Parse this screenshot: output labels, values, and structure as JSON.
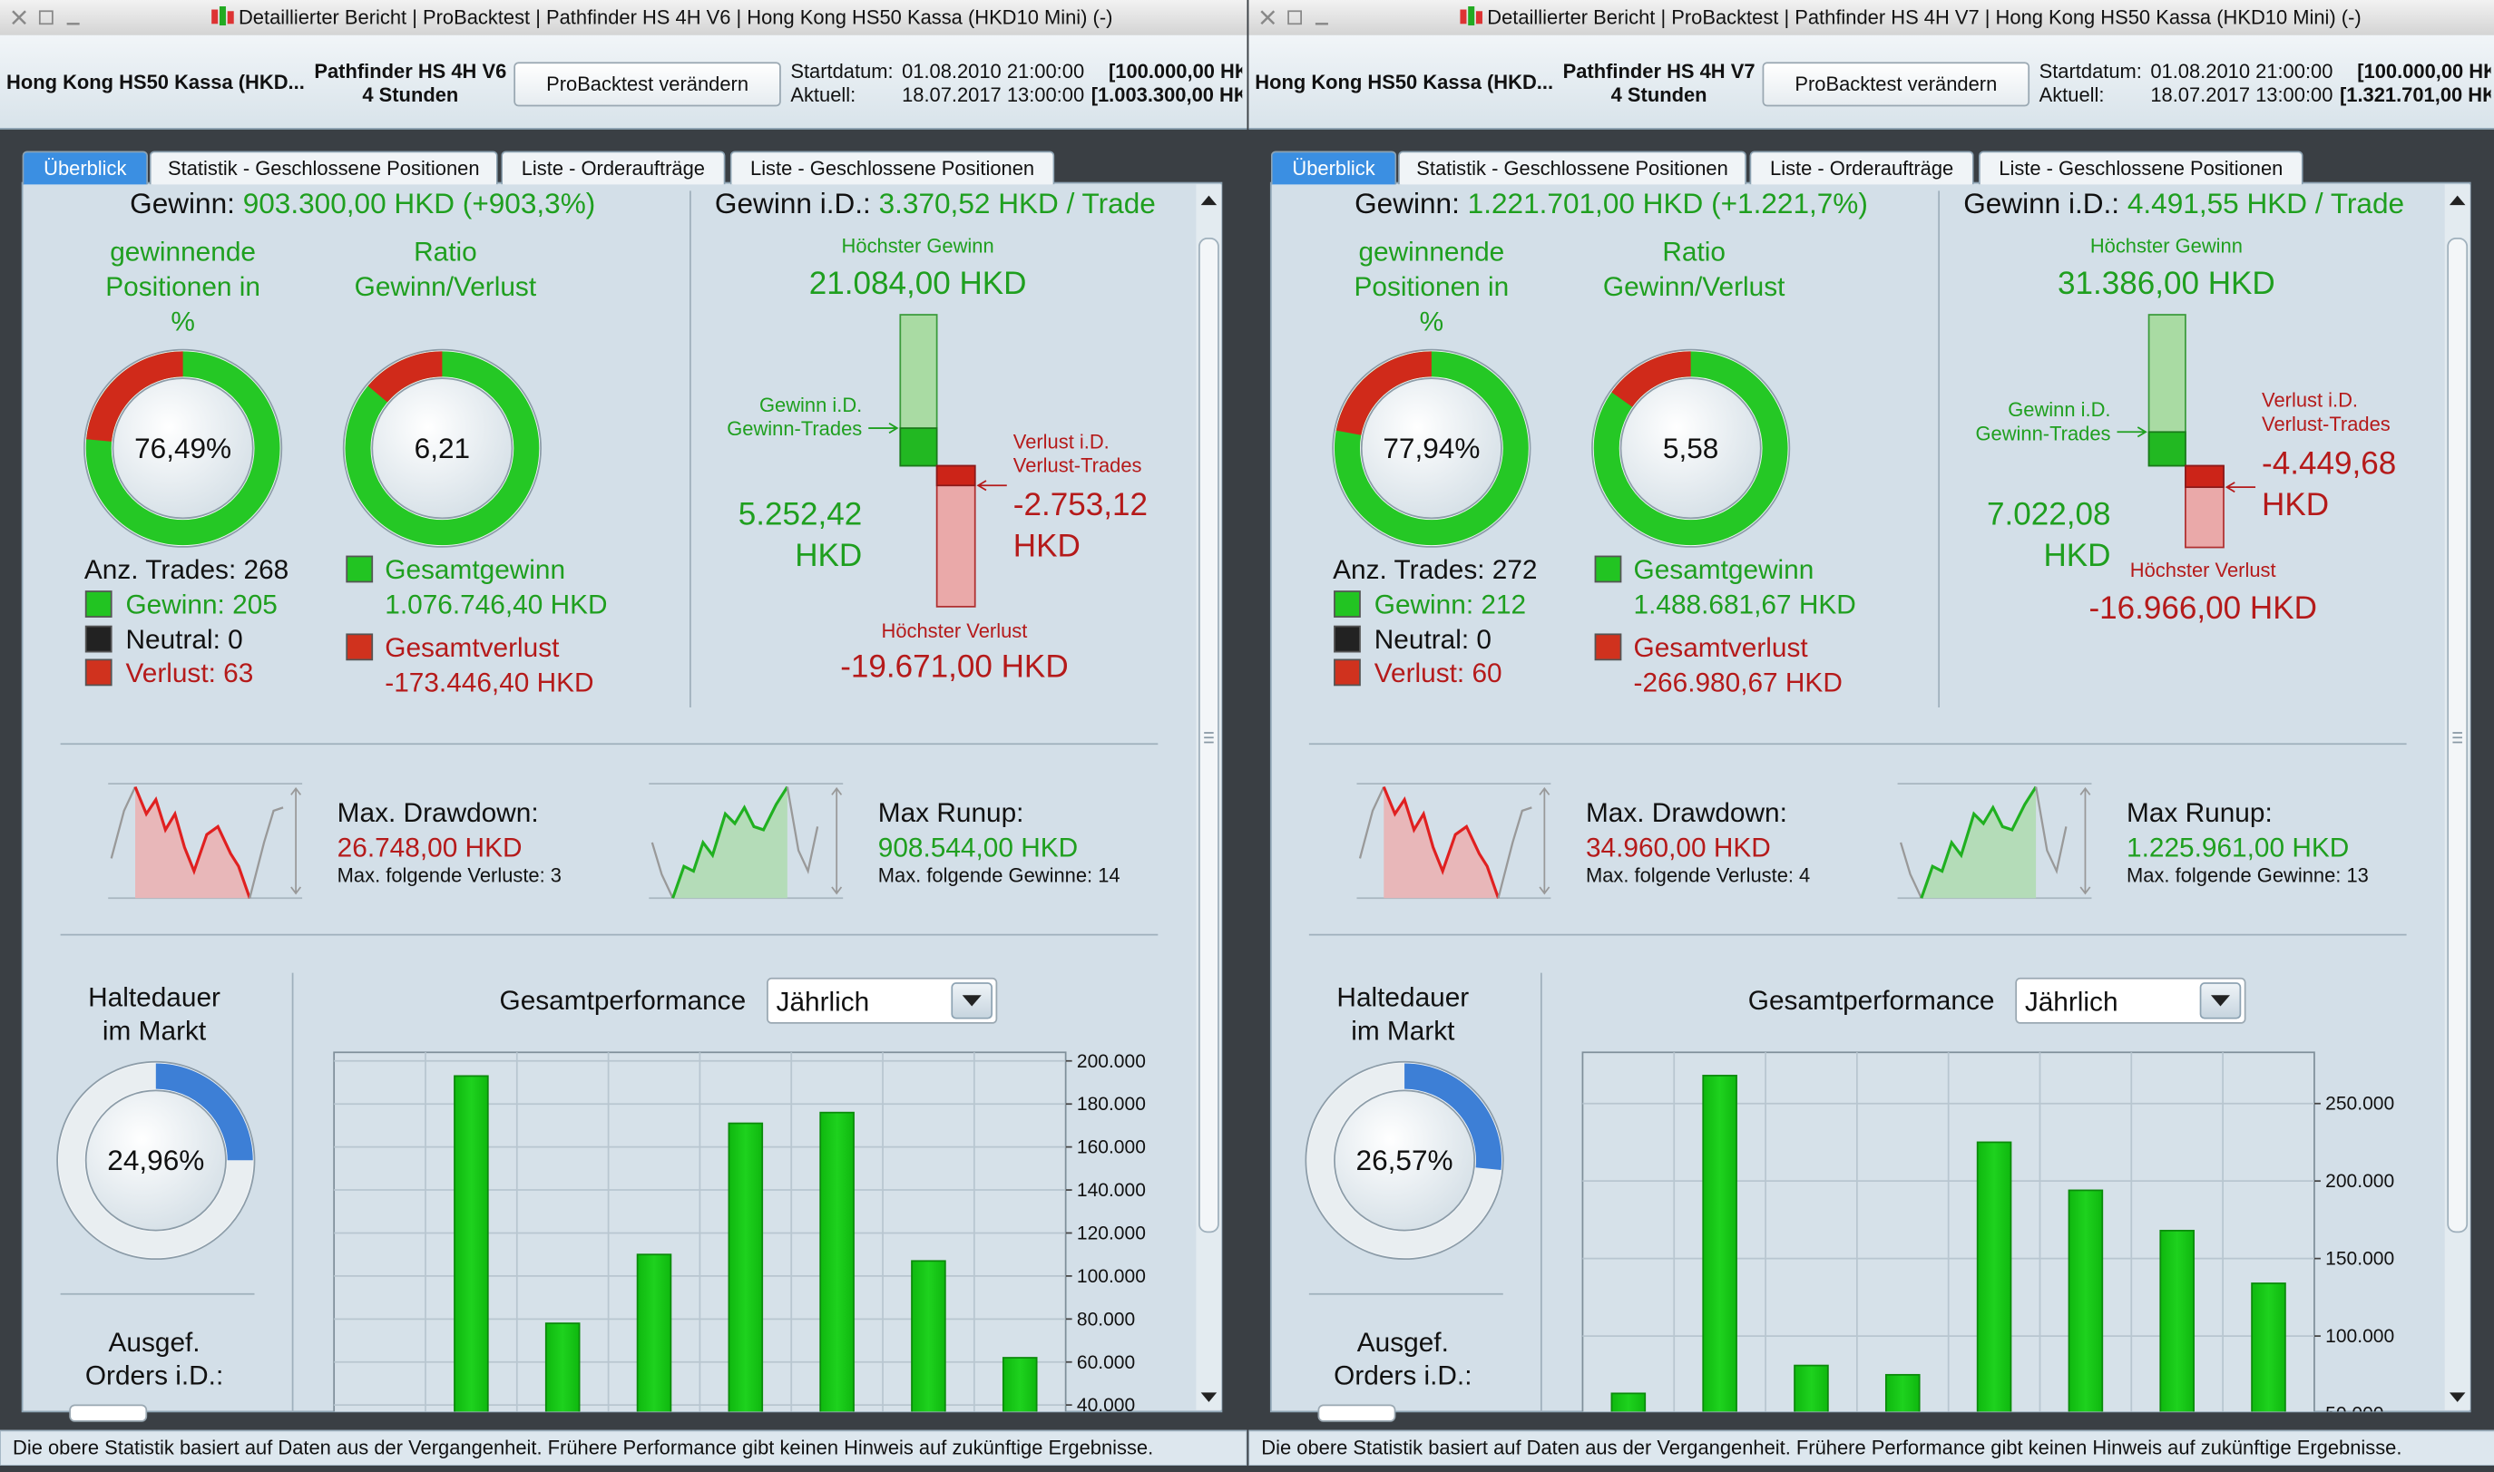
{
  "windows": [
    {
      "title": "Detaillierter Bericht | ProBacktest | Pathfinder HS 4H V6 | Hong Kong HS50 Kassa (HKD10 Mini) (-)",
      "header": {
        "instrument": "Hong Kong HS50 Kassa (HKD...",
        "system": "Pathfinder HS 4H V6",
        "timeframe": "4 Stunden",
        "button": "ProBacktest verändern",
        "start_label": "Startdatum:",
        "start_date": "01.08.2010 21:00:00",
        "start_capital": "[100.000,00 HK",
        "current_label": "Aktuell:",
        "current_date": "18.07.2017 13:00:00",
        "current_capital": "[1.003.300,00 HK"
      },
      "tabs": [
        "Überblick",
        "Statistik - Geschlossene Positionen",
        "Liste - Orderaufträge",
        "Liste - Geschlossene Positionen"
      ],
      "overview": {
        "gain_label": "Gewinn:",
        "gain": "903.300,00 HKD (+903,3%)",
        "win_pct_label": "gewinnende\nPositionen in\n%",
        "win_pct": {
          "value": 76.49,
          "label": "76,49%"
        },
        "ratio_label": "Ratio\nGewinn/Verlust",
        "ratio": {
          "value": 6.21,
          "label": "6,21"
        },
        "trades": "Anz. Trades: 268",
        "wins": "Gewinn: 205",
        "neutral": "Neutral: 0",
        "losses": "Verlust: 63",
        "total_gain_label": "Gesamtgewinn",
        "total_gain": "1.076.746,40 HKD",
        "total_loss_label": "Gesamtverlust",
        "total_loss": "-173.446,40 HKD",
        "avg_label": "Gewinn i.D.:",
        "avg": "3.370,52 HKD / Trade",
        "max_gain_label": "Höchster Gewinn",
        "max_gain": {
          "value": 21084,
          "label": "21.084,00 HKD"
        },
        "avg_gain_label": "Gewinn i.D.\nGewinn-Trades",
        "avg_gain": {
          "value": 5252.42,
          "label": "5.252,42\nHKD"
        },
        "avg_loss_label": "Verlust i.D.\nVerlust-Trades",
        "avg_loss": {
          "value": -2753.12,
          "label": "-2.753,12\nHKD"
        },
        "max_loss_label": "Höchster Verlust",
        "max_loss": {
          "value": -19671,
          "label": "-19.671,00 HKD"
        },
        "drawdown_label": "Max. Drawdown:",
        "drawdown": "26.748,00 HKD",
        "drawdown_streak": "Max. folgende Verluste: 3",
        "runup_label": "Max Runup:",
        "runup": "908.544,00 HKD",
        "runup_streak": "Max. folgende Gewinne: 14",
        "time_in_market_label": "Haltedauer\nim Markt",
        "time_in_market": {
          "value": 24.96,
          "label": "24,96%"
        },
        "orders_label": "Ausgef.\nOrders i.D.:"
      },
      "footer": "Die obere Statistik basiert auf Daten aus der Vergangenheit. Frühere Performance gibt keinen Hinweis auf zukünftige Ergebnisse."
    },
    {
      "title": "Detaillierter Bericht | ProBacktest | Pathfinder HS 4H V7 | Hong Kong HS50 Kassa (HKD10 Mini) (-)",
      "header": {
        "instrument": "Hong Kong HS50 Kassa (HKD...",
        "system": "Pathfinder HS 4H V7",
        "timeframe": "4 Stunden",
        "button": "ProBacktest verändern",
        "start_label": "Startdatum:",
        "start_date": "01.08.2010 21:00:00",
        "start_capital": "[100.000,00 HK",
        "current_label": "Aktuell:",
        "current_date": "18.07.2017 13:00:00",
        "current_capital": "[1.321.701,00 HK"
      },
      "tabs": [
        "Überblick",
        "Statistik - Geschlossene Positionen",
        "Liste - Orderaufträge",
        "Liste - Geschlossene Positionen"
      ],
      "overview": {
        "gain_label": "Gewinn:",
        "gain": "1.221.701,00 HKD (+1.221,7%)",
        "win_pct_label": "gewinnende\nPositionen in\n%",
        "win_pct": {
          "value": 77.94,
          "label": "77,94%"
        },
        "ratio_label": "Ratio\nGewinn/Verlust",
        "ratio": {
          "value": 5.58,
          "label": "5,58"
        },
        "trades": "Anz. Trades: 272",
        "wins": "Gewinn: 212",
        "neutral": "Neutral: 0",
        "losses": "Verlust: 60",
        "total_gain_label": "Gesamtgewinn",
        "total_gain": "1.488.681,67 HKD",
        "total_loss_label": "Gesamtverlust",
        "total_loss": "-266.980,67 HKD",
        "avg_label": "Gewinn i.D.:",
        "avg": "4.491,55 HKD / Trade",
        "max_gain_label": "Höchster Gewinn",
        "max_gain": {
          "value": 31386,
          "label": "31.386,00 HKD"
        },
        "avg_gain_label": "Gewinn i.D.\nGewinn-Trades",
        "avg_gain": {
          "value": 7022.08,
          "label": "7.022,08\nHKD"
        },
        "avg_loss_label": "Verlust i.D.\nVerlust-Trades",
        "avg_loss": {
          "value": -4449.68,
          "label": "-4.449,68\nHKD"
        },
        "max_loss_label": "Höchster Verlust",
        "max_loss": {
          "value": -16966,
          "label": "-16.966,00 HKD"
        },
        "drawdown_label": "Max. Drawdown:",
        "drawdown": "34.960,00 HKD",
        "drawdown_streak": "Max. folgende Verluste: 4",
        "runup_label": "Max Runup:",
        "runup": "1.225.961,00 HKD",
        "runup_streak": "Max. folgende Gewinne: 13",
        "time_in_market_label": "Haltedauer\nim Markt",
        "time_in_market": {
          "value": 26.57,
          "label": "26,57%"
        },
        "orders_label": "Ausgef.\nOrders i.D.:"
      },
      "footer": "Die obere Statistik basiert auf Daten aus der Vergangenheit. Frühere Performance gibt keinen Hinweis auf zukünftige Ergebnisse."
    }
  ],
  "chart_data": [
    {
      "type": "bar",
      "title": "Gesamtperformance",
      "period": "Jährlich",
      "categories": [
        null,
        null,
        null,
        null,
        null,
        null,
        null,
        null
      ],
      "values": [
        null,
        193000,
        78000,
        110000,
        171000,
        176000,
        107000,
        62000
      ],
      "color": "#1ed21e",
      "ylim": [
        0,
        204000
      ],
      "yticks": [
        {
          "value": 40000,
          "label": "40.000"
        },
        {
          "value": 60000,
          "label": "60.000"
        },
        {
          "value": 80000,
          "label": "80.000"
        },
        {
          "value": 100000,
          "label": "100.000"
        },
        {
          "value": 120000,
          "label": "120.000"
        },
        {
          "value": 140000,
          "label": "140.000"
        },
        {
          "value": 160000,
          "label": "160.000"
        },
        {
          "value": 180000,
          "label": "180.000"
        },
        {
          "value": 200000,
          "label": "200.000"
        }
      ],
      "grid": true
    },
    {
      "type": "bar",
      "title": "Gesamtperformance",
      "period": "Jährlich",
      "categories": [
        null,
        null,
        null,
        null,
        null,
        null,
        null,
        null
      ],
      "values": [
        63000,
        268000,
        81000,
        75000,
        225000,
        194000,
        168000,
        134000
      ],
      "color": "#1ed21e",
      "ylim": [
        0,
        283000
      ],
      "yticks": [
        {
          "value": 50000,
          "label": "50.000"
        },
        {
          "value": 100000,
          "label": "100.000"
        },
        {
          "value": 150000,
          "label": "150.000"
        },
        {
          "value": 200000,
          "label": "200.000"
        },
        {
          "value": 250000,
          "label": "250.000"
        }
      ],
      "grid": true
    }
  ]
}
